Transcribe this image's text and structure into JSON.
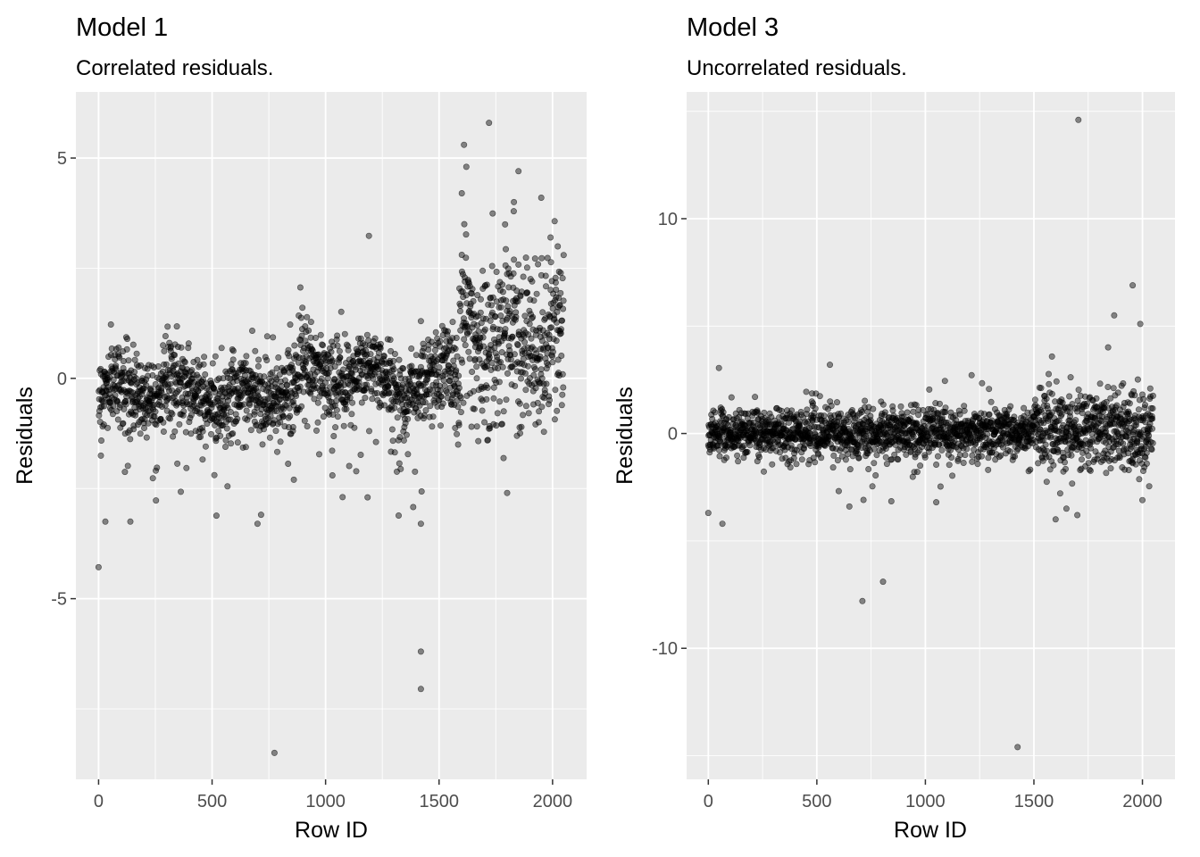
{
  "chart_data": [
    {
      "type": "scatter",
      "title": "Model 1",
      "subtitle": "Correlated residuals.",
      "xlabel": "Row ID",
      "ylabel": "Residuals",
      "xlim": [
        -100,
        2150
      ],
      "ylim": [
        -9.1,
        6.5
      ],
      "xticks": [
        0,
        500,
        1000,
        1500,
        2000
      ],
      "xtick_labels": [
        "0",
        "500",
        "1000",
        "1500",
        "2000"
      ],
      "yticks": [
        5,
        0,
        -5
      ],
      "ytick_labels": [
        "5",
        "0",
        "-5"
      ],
      "n_points": 2050,
      "point_color": "#000000",
      "point_alpha": 0.45,
      "grid": true,
      "panel_background": "#ebebeb",
      "outliers": [
        {
          "x": 30,
          "y": -3.25
        },
        {
          "x": 140,
          "y": -3.25
        },
        {
          "x": 700,
          "y": -3.3
        },
        {
          "x": 775,
          "y": -8.5
        },
        {
          "x": 1420,
          "y": -3.3
        },
        {
          "x": 1420,
          "y": -6.2
        },
        {
          "x": 1420,
          "y": -7.05
        },
        {
          "x": 1420,
          "y": 1.3
        },
        {
          "x": 1185,
          "y": -2.7
        },
        {
          "x": 860,
          "y": -2.3
        },
        {
          "x": 1720,
          "y": 5.8
        },
        {
          "x": 1610,
          "y": 5.3
        },
        {
          "x": 1620,
          "y": 4.8
        },
        {
          "x": 1850,
          "y": 4.7
        },
        {
          "x": 1800,
          "y": -2.6
        },
        {
          "x": 1950,
          "y": 4.1
        },
        {
          "x": 1830,
          "y": 4.0
        },
        {
          "x": 1600,
          "y": 4.2
        }
      ]
    },
    {
      "type": "scatter",
      "title": "Model 3",
      "subtitle": "Uncorrelated residuals.",
      "xlabel": "Row ID",
      "ylabel": "Residuals",
      "xlim": [
        -100,
        2150
      ],
      "ylim": [
        -16.1,
        15.9
      ],
      "xticks": [
        0,
        500,
        1000,
        1500,
        2000
      ],
      "xtick_labels": [
        "0",
        "500",
        "1000",
        "1500",
        "2000"
      ],
      "yticks": [
        10,
        0,
        -10
      ],
      "ytick_labels": [
        "10",
        "0",
        "-10"
      ],
      "n_points": 2050,
      "point_color": "#000000",
      "point_alpha": 0.45,
      "grid": true,
      "panel_background": "#ebebeb",
      "outliers": [
        {
          "x": 1705,
          "y": 14.6
        },
        {
          "x": 1425,
          "y": -14.6
        },
        {
          "x": 710,
          "y": -7.8
        },
        {
          "x": 805,
          "y": -6.9
        },
        {
          "x": 0,
          "y": -3.7
        },
        {
          "x": 65,
          "y": -4.2
        },
        {
          "x": 650,
          "y": -3.4
        },
        {
          "x": 1955,
          "y": 6.9
        },
        {
          "x": 1870,
          "y": 5.5
        },
        {
          "x": 1990,
          "y": 5.1
        },
        {
          "x": 560,
          "y": 3.2
        },
        {
          "x": 1600,
          "y": -4.0
        },
        {
          "x": 1700,
          "y": -3.8
        },
        {
          "x": 1650,
          "y": -3.5
        },
        {
          "x": 2000,
          "y": -3.1
        },
        {
          "x": 1050,
          "y": -3.2
        }
      ]
    }
  ]
}
